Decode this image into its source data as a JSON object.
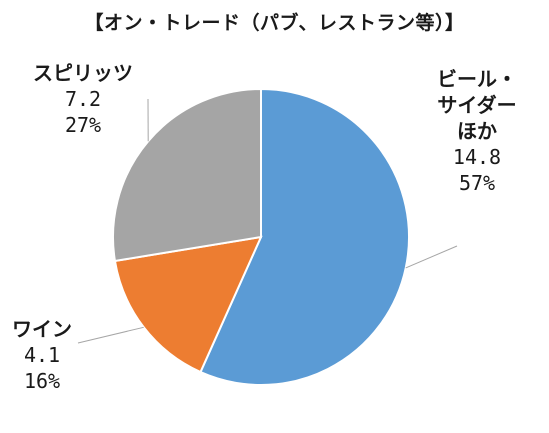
{
  "chart_data": {
    "type": "pie",
    "title": "【オン・トレード（パブ、レストラン等）】",
    "slices": [
      {
        "name_lines": [
          "ビール・",
          "サイダー",
          "ほか"
        ],
        "value": 14.8,
        "value_label": "14.8",
        "percent_label": "57%",
        "color": "#5b9bd5"
      },
      {
        "name_lines": [
          "ワイン"
        ],
        "value": 4.1,
        "value_label": "4.1",
        "percent_label": "16%",
        "color": "#ed7d31"
      },
      {
        "name_lines": [
          "スピリッツ"
        ],
        "value": 7.2,
        "value_label": "7.2",
        "percent_label": "27%",
        "color": "#a5a5a5"
      }
    ],
    "start_angle_deg": 0,
    "direction": "clockwise",
    "legend": "none"
  }
}
